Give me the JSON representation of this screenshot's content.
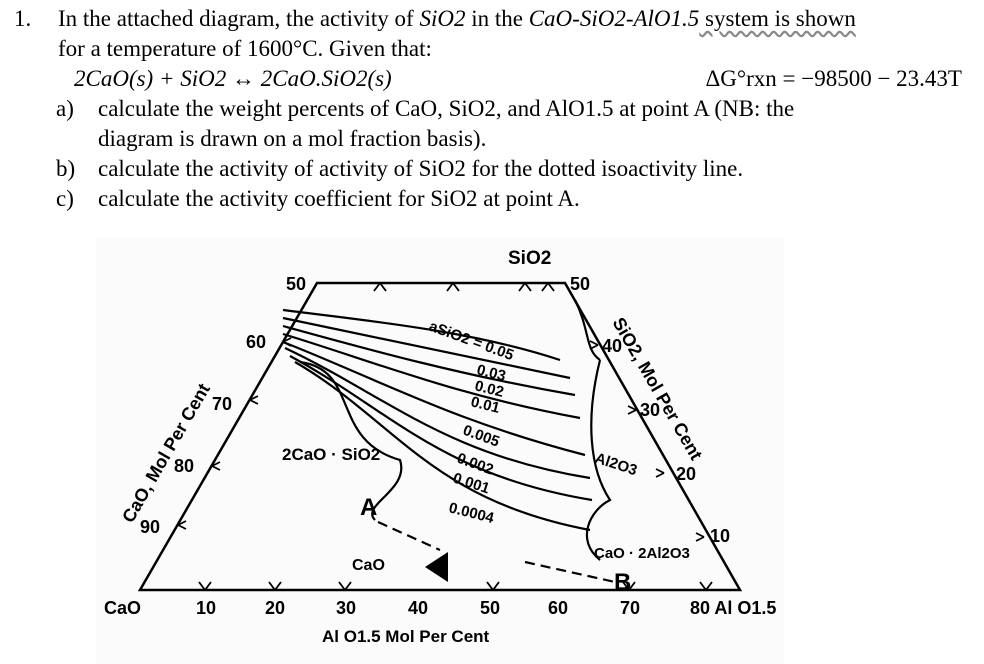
{
  "question": {
    "number": "1.",
    "line1_a": "In the attached diagram, the activity of ",
    "line1_species": "SiO2",
    "line1_b": " in the ",
    "line1_system": "CaO-SiO2-AlO1.5",
    "line1_c": " system is shown",
    "line2": "for a temperature of 1600°C. Given that:",
    "reaction": "2CaO(s) + SiO2 ↔ 2CaO.SiO2(s)",
    "delta_g": "ΔG°rxn = −98500 − 23.43T",
    "parts": [
      {
        "label": "a)",
        "text1": "calculate the weight percents of CaO, SiO2, and AlO1.5 at point A (NB: the",
        "text2": "diagram is drawn on a mol fraction basis)."
      },
      {
        "label": "b)",
        "text1": "calculate the activity of activity of SiO2 for the dotted isoactivity line."
      },
      {
        "label": "c)",
        "text1": "calculate the activity coefficient for SiO2 at point A."
      }
    ]
  },
  "diagram": {
    "apex_label": "SiO2",
    "left_axis_title": "CaO, Mol Per Cent",
    "right_axis_title": "SiO2, Mol Per Cent",
    "bottom_axis_title": "Al O1.5 Mol Per Cent",
    "left_ticks": [
      "50",
      "60",
      "70",
      "80",
      "90"
    ],
    "right_ticks": [
      "50",
      "40",
      "30",
      "20",
      "10"
    ],
    "bottom_ticks": [
      "CaO",
      "10",
      "20",
      "30",
      "40",
      "50",
      "60",
      "70",
      "80 Al O1.5"
    ],
    "activity_labels": [
      "aSiO2 = 0.05",
      "0.03",
      "0.02",
      "0.01",
      "0.005",
      "0.002",
      "0.001",
      "0.0004"
    ],
    "phase_labels": [
      "2CaO · SiO2",
      "CaO",
      "Al2O3",
      "CaO · 2Al2O3"
    ],
    "points": [
      "A",
      "B"
    ]
  }
}
